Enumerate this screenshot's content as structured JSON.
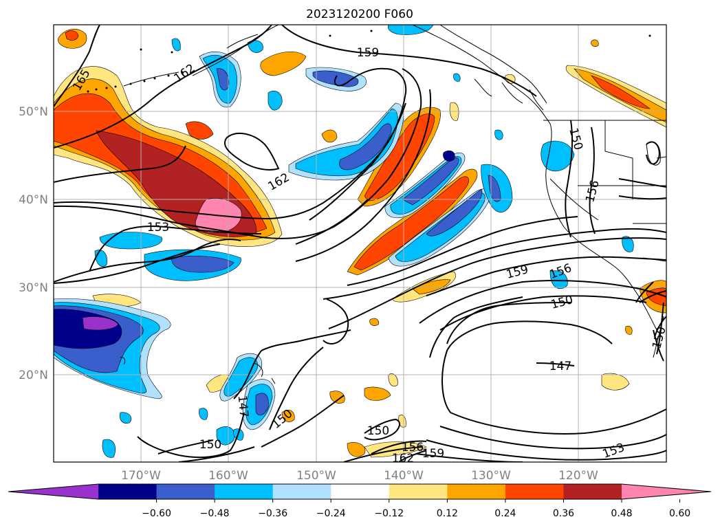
{
  "title": "2023120200 F060",
  "lat_labels": [
    "50°N",
    "40°N",
    "30°N",
    "20°N"
  ],
  "lon_labels": [
    "170°W",
    "160°W",
    "150°W",
    "140°W",
    "130°W",
    "120°W"
  ],
  "contour_labels": [
    {
      "text": "165"
    },
    {
      "text": "162"
    },
    {
      "text": "159"
    },
    {
      "text": "162"
    },
    {
      "text": "153"
    },
    {
      "text": "150"
    },
    {
      "text": "156"
    },
    {
      "text": "159"
    },
    {
      "text": "156"
    },
    {
      "text": "150"
    },
    {
      "text": "147"
    },
    {
      "text": "147"
    },
    {
      "text": "150"
    },
    {
      "text": "150"
    },
    {
      "text": "150"
    },
    {
      "text": "156"
    },
    {
      "text": "162"
    },
    {
      "text": "159"
    },
    {
      "text": "153"
    },
    {
      "text": "150"
    }
  ],
  "colorbar": {
    "ticks": [
      "−0.60",
      "−0.48",
      "−0.36",
      "−0.24",
      "−0.12",
      "0.12",
      "0.24",
      "0.36",
      "0.48",
      "0.60"
    ],
    "colors": [
      "#9932cc",
      "#00008b",
      "#3a5fcd",
      "#00bfff",
      "#b0e2ff",
      "#ffffff",
      "#ffe680",
      "#ffa500",
      "#ff4500",
      "#b22222",
      "#ff85b0"
    ]
  }
}
